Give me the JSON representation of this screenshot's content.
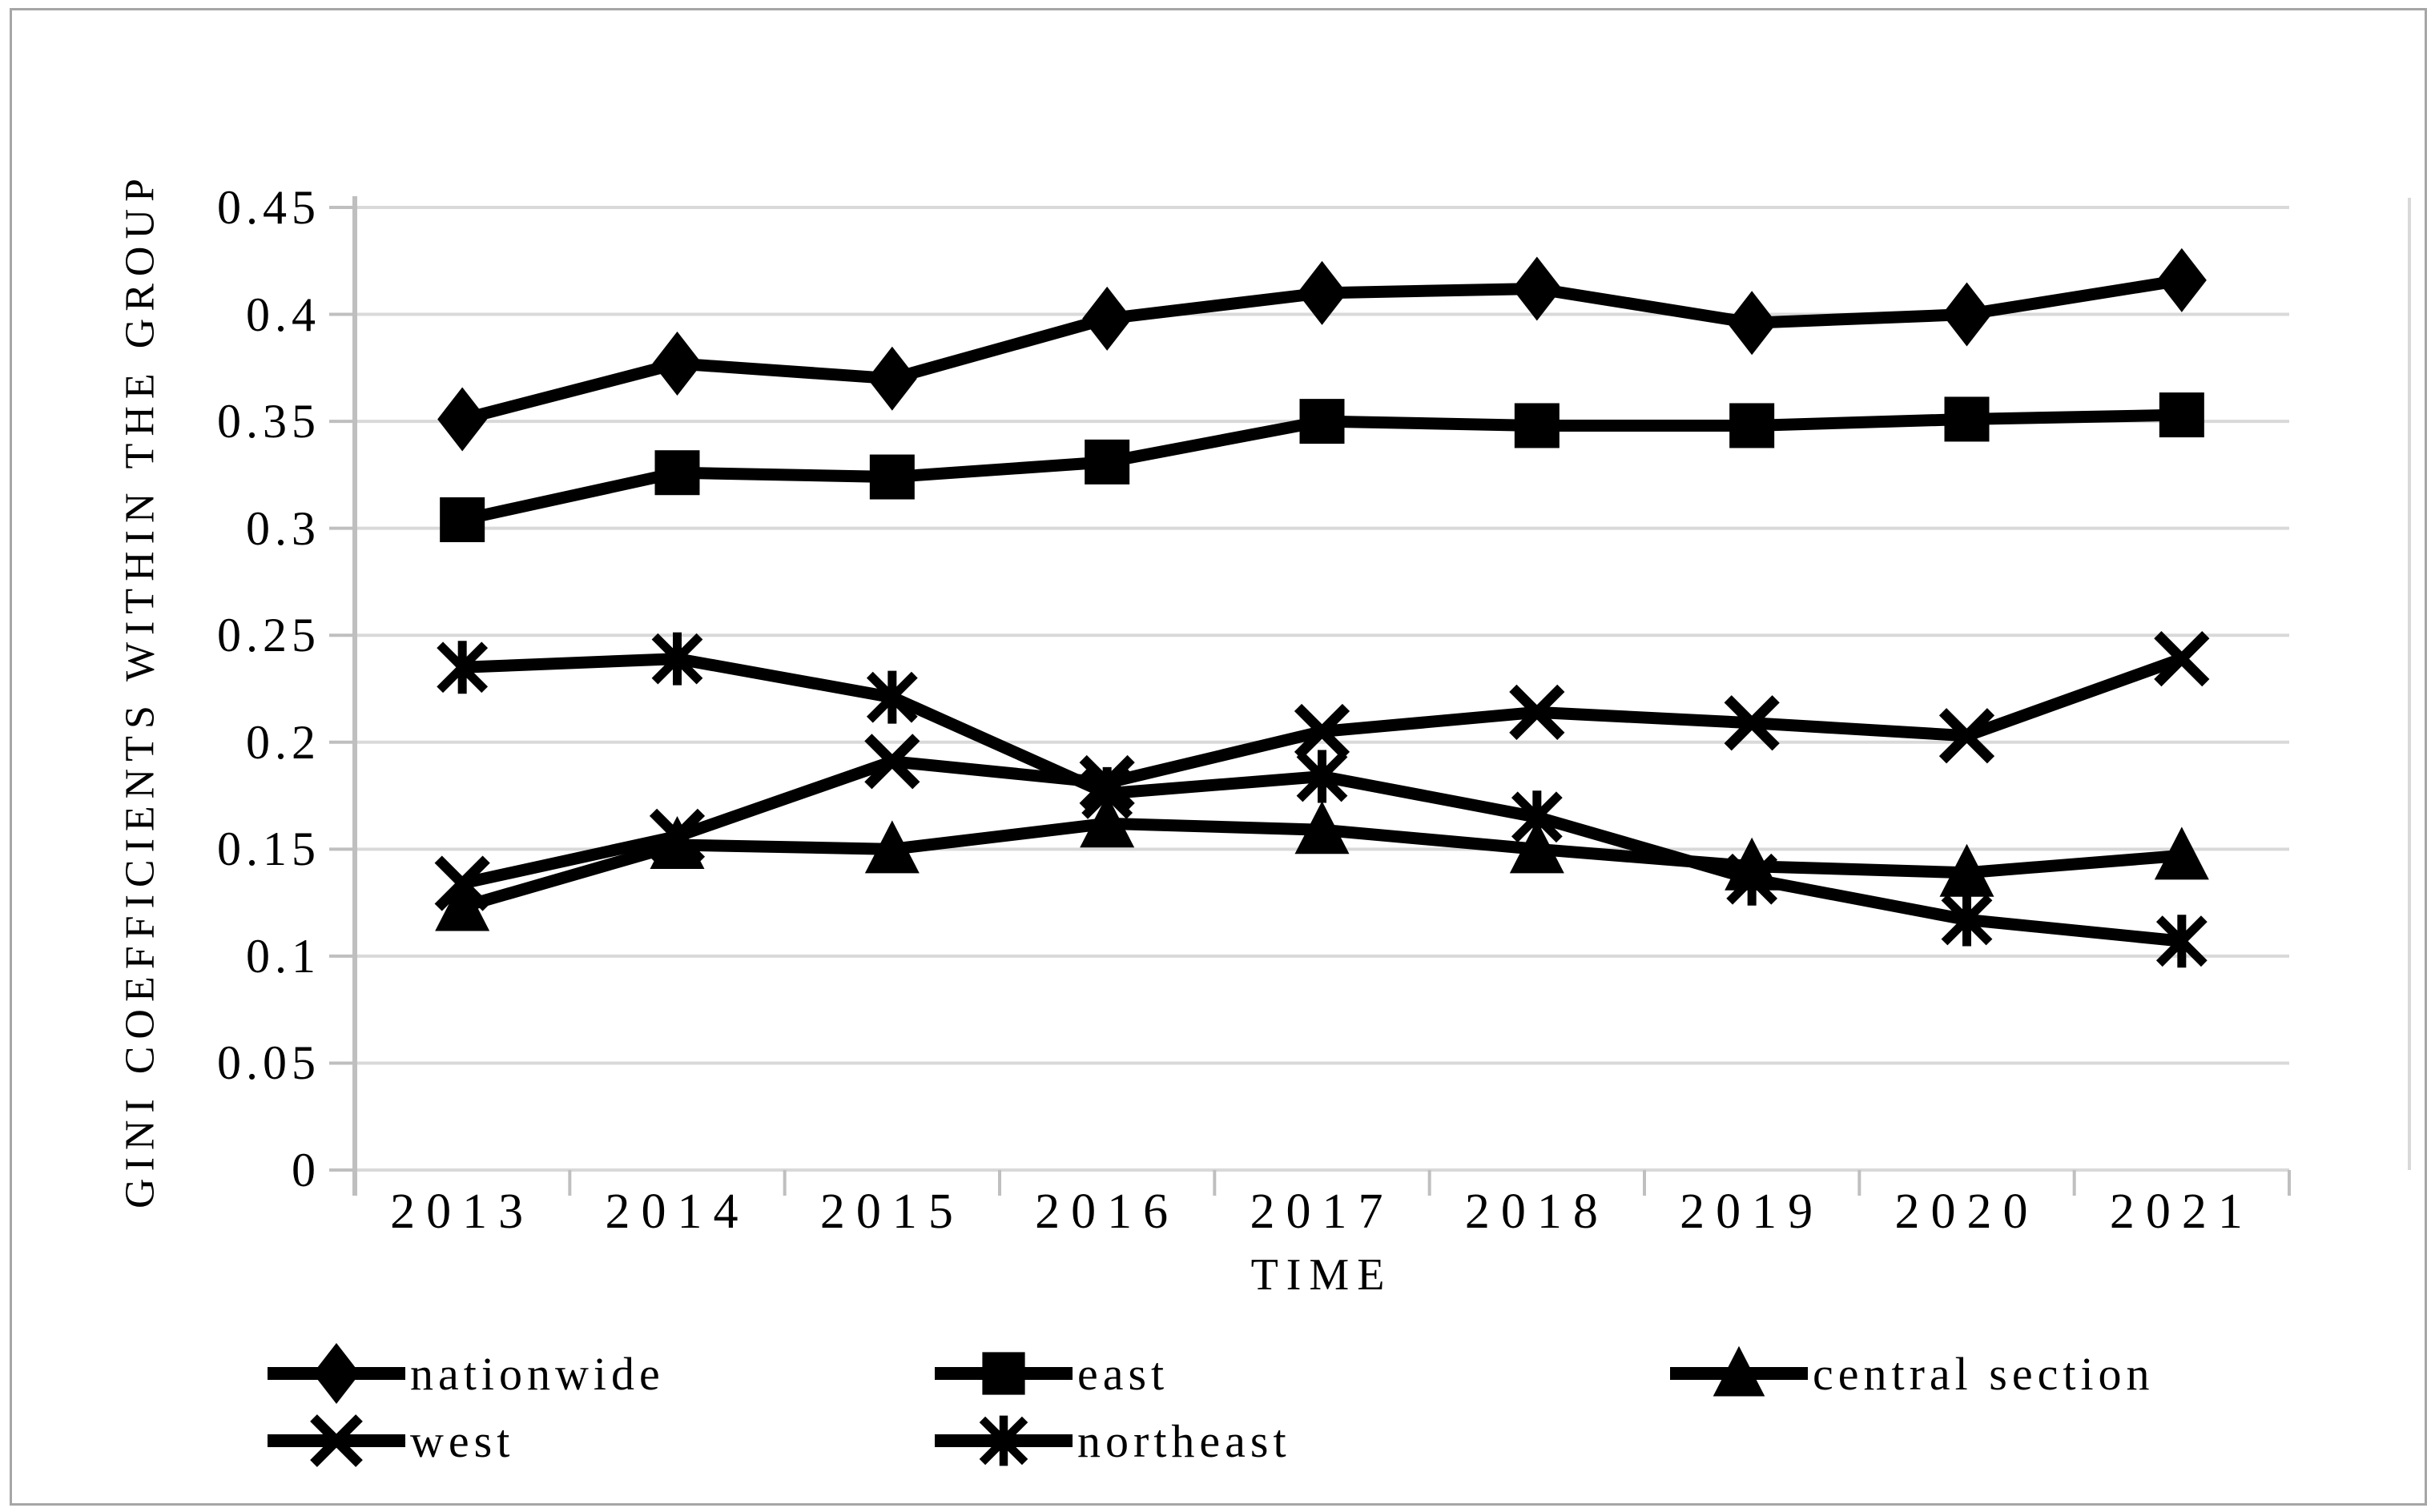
{
  "figure": {
    "y_axis_title": "GINI COEFFICIENTS WITHIN THE GROUP",
    "x_axis_title": "TIME"
  },
  "chart_data": {
    "type": "line",
    "title": "",
    "xlabel": "TIME",
    "ylabel": "GINI COEFFICIENTS WITHIN THE GROUP",
    "categories": [
      "2013",
      "2014",
      "2015",
      "2016",
      "2017",
      "2018",
      "2019",
      "2020",
      "2021"
    ],
    "y_ticks": [
      0,
      0.05,
      0.1,
      0.15,
      0.2,
      0.25,
      0.3,
      0.35,
      0.4,
      0.45
    ],
    "y_tick_labels": [
      "0",
      "0.05",
      "0.1",
      "0.15",
      "0.2",
      "0.25",
      "0.3",
      "0.35",
      "0.4",
      "0.45"
    ],
    "ylim": [
      0,
      0.45
    ],
    "grid": true,
    "legend_position": "bottom",
    "series": [
      {
        "name": "nationwide",
        "marker": "diamond",
        "values": [
          0.351,
          0.377,
          0.37,
          0.398,
          0.41,
          0.412,
          0.396,
          0.4,
          0.416
        ]
      },
      {
        "name": "east",
        "marker": "square",
        "values": [
          0.304,
          0.326,
          0.324,
          0.331,
          0.35,
          0.348,
          0.348,
          0.351,
          0.353
        ]
      },
      {
        "name": "central section",
        "marker": "triangle",
        "values": [
          0.123,
          0.152,
          0.15,
          0.162,
          0.159,
          0.15,
          0.142,
          0.139,
          0.147
        ]
      },
      {
        "name": "west",
        "marker": "x",
        "values": [
          0.134,
          0.156,
          0.191,
          0.181,
          0.205,
          0.214,
          0.209,
          0.203,
          0.239
        ]
      },
      {
        "name": "northeast",
        "marker": "asterisk",
        "values": [
          0.235,
          0.239,
          0.221,
          0.176,
          0.184,
          0.165,
          0.136,
          0.117,
          0.107
        ]
      }
    ],
    "colors": {
      "series": "#000000",
      "gridline": "#d9d9d9",
      "axis": "#bfbfbf",
      "text": "#000000",
      "chart_border": "#a6a6a6",
      "background": "#ffffff"
    }
  }
}
